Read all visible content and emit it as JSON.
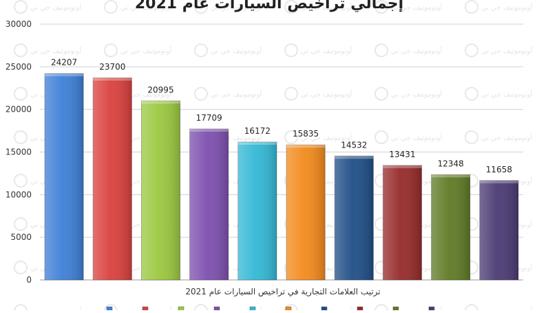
{
  "chart_data": {
    "type": "bar",
    "title": "إجمالي تراخيص السيارات عام 2021",
    "xlabel": "ترتيب العلامات التجارية في تراخيص السيارات عام 2021",
    "ylabel": "",
    "ylim": [
      0,
      30000
    ],
    "yticks": [
      "0",
      "5000",
      "10000",
      "15000",
      "20000",
      "25000",
      "30000"
    ],
    "values": [
      24207,
      23700,
      20995,
      17709,
      16172,
      15835,
      14532,
      13431,
      12348,
      11658
    ],
    "data_labels": [
      "24207",
      "23700",
      "20995",
      "17709",
      "16172",
      "15835",
      "14532",
      "13431",
      "12348",
      "11658"
    ],
    "colors": [
      "#3d7fd6",
      "#d9403d",
      "#9bc83f",
      "#7d4fae",
      "#33b8d6",
      "#f28a1c",
      "#1f4e87",
      "#962a2a",
      "#5f7a25",
      "#4b3a73"
    ],
    "grid": true,
    "legend_position": "bottom",
    "watermark": "أوتوموتيف جي تي"
  }
}
